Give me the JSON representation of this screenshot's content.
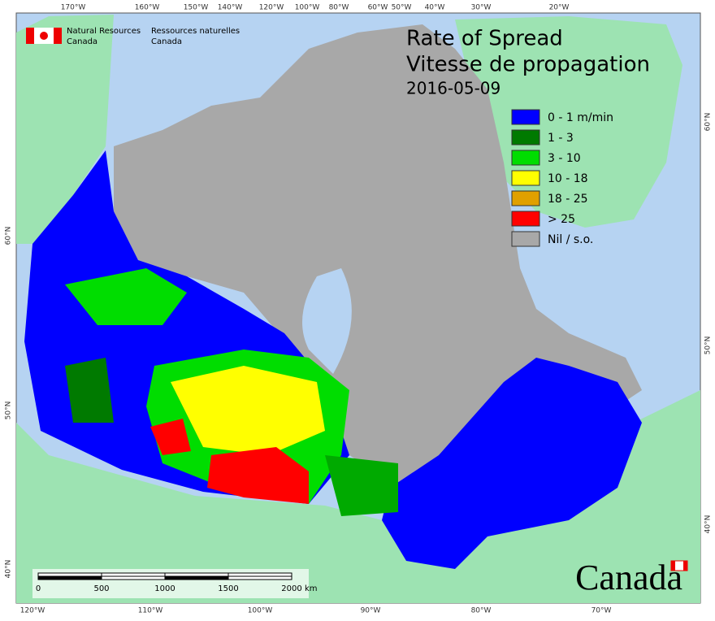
{
  "header": {
    "agency_en": [
      "Natural Resources",
      "Canada"
    ],
    "agency_fr": [
      "Ressources naturelles",
      "Canada"
    ],
    "title": "Rate of Spread",
    "title_fr": "Vitesse de propagation",
    "date": "2016-05-09"
  },
  "legend": [
    {
      "label": "0 - 1 m/min",
      "color": "#0000ff"
    },
    {
      "label": "1 - 3",
      "color": "#007a00"
    },
    {
      "label": "3 - 10",
      "color": "#00dd00"
    },
    {
      "label": "10 - 18",
      "color": "#ffff00"
    },
    {
      "label": "18 - 25",
      "color": "#e0a000"
    },
    {
      "label": "> 25",
      "color": "#ff0000"
    },
    {
      "label": "Nil / s.o.",
      "color": "#a8a8a8"
    }
  ],
  "graticule": {
    "top": [
      "170°W",
      "160°W",
      "150°W",
      "140°W",
      "120°W",
      "100°W",
      "80°W",
      "60°W",
      "50°W",
      "40°W",
      "30°W",
      "20°W"
    ],
    "bottom": [
      "120°W",
      "110°W",
      "100°W",
      "90°W",
      "80°W",
      "70°W"
    ],
    "left": [
      "60°N",
      "50°N",
      "40°N"
    ],
    "right": [
      "60°N",
      "50°N",
      "40°N"
    ]
  },
  "scale_bar": {
    "labels": [
      "0",
      "500",
      "1000",
      "1500",
      "2000"
    ],
    "unit": "km"
  },
  "wordmark": "Canada"
}
